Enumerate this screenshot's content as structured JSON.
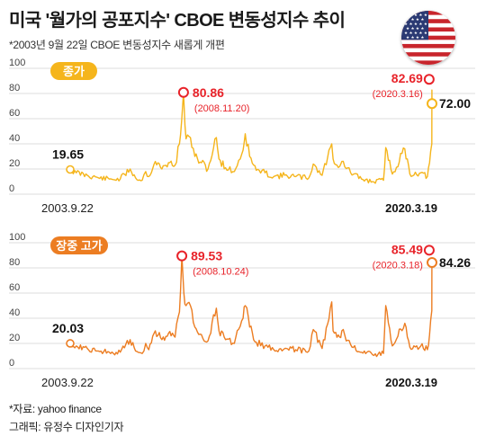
{
  "header": {
    "title": "미국 '월가의 공포지수' CBOE 변동성지수 추이",
    "subtitle": "*2003년 9월 22일 CBOE 변동성지수 새롭게 개편"
  },
  "flag_icon": "us-flag-icon",
  "colors": {
    "close_line": "#f5b51c",
    "high_line": "#ec7d22",
    "marker_red": "#e8232a",
    "label_red": "#e8232a",
    "grid": "#dcdcdc"
  },
  "footer": {
    "source": "*자료: yahoo finance",
    "credit": "그래픽: 유정수 디자인기자"
  },
  "chart_data": [
    {
      "type": "line",
      "badge": "종가",
      "yticks": [
        "100",
        "80",
        "60",
        "40",
        "20",
        "0"
      ],
      "ylim": [
        0,
        100
      ],
      "x_start_label": "2003.9.22",
      "x_end_label": "2020.3.19",
      "x": [
        2003.72,
        2004.0,
        2004.5,
        2005.0,
        2005.5,
        2006.0,
        2006.45,
        2006.7,
        2007.0,
        2007.16,
        2007.3,
        2007.6,
        2007.9,
        2008.2,
        2008.5,
        2008.7,
        2008.8,
        2008.885,
        2008.95,
        2009.0,
        2009.2,
        2009.4,
        2009.7,
        2010.0,
        2010.38,
        2010.5,
        2010.8,
        2011.2,
        2011.6,
        2011.7,
        2011.9,
        2012.2,
        2012.6,
        2013.0,
        2013.5,
        2014.0,
        2014.6,
        2014.8,
        2015.2,
        2015.64,
        2015.7,
        2016.0,
        2016.1,
        2016.5,
        2017.0,
        2017.5,
        2018.0,
        2018.1,
        2018.4,
        2018.97,
        2019.2,
        2019.7,
        2020.0,
        2020.1,
        2020.2,
        2020.204,
        2020.21
      ],
      "series": [
        {
          "values": [
            19.65,
            17,
            15,
            13,
            12,
            12,
            20,
            13,
            11,
            18,
            14,
            26,
            20,
            25,
            23,
            40,
            58,
            80.86,
            55,
            44,
            45,
            30,
            25,
            20,
            45,
            28,
            21,
            18,
            35,
            48,
            30,
            19,
            17,
            14,
            15,
            14,
            13,
            24,
            15,
            40,
            28,
            22,
            26,
            17,
            12,
            10,
            11,
            37,
            16,
            36,
            16,
            17,
            14,
            25,
            40,
            82.69,
            72.0
          ]
        }
      ],
      "annotations": [
        {
          "value": "19.65"
        },
        {
          "value": "80.86",
          "date": "(2008.11.20)"
        },
        {
          "value": "82.69",
          "date": "(2020.3.16)"
        },
        {
          "value": "72.00"
        }
      ]
    },
    {
      "type": "line",
      "badge": "장중 고가",
      "yticks": [
        "100",
        "80",
        "60",
        "40",
        "20",
        "0"
      ],
      "ylim": [
        0,
        100
      ],
      "x_start_label": "2003.9.22",
      "x_end_label": "2020.3.19",
      "x": [
        2003.72,
        2004.0,
        2004.5,
        2005.0,
        2005.5,
        2006.0,
        2006.45,
        2006.7,
        2007.0,
        2007.16,
        2007.3,
        2007.6,
        2007.9,
        2008.2,
        2008.5,
        2008.7,
        2008.75,
        2008.81,
        2008.9,
        2009.0,
        2009.2,
        2009.4,
        2009.7,
        2010.0,
        2010.38,
        2010.5,
        2010.8,
        2011.2,
        2011.6,
        2011.7,
        2011.9,
        2012.2,
        2012.6,
        2013.0,
        2013.5,
        2014.0,
        2014.6,
        2014.8,
        2015.2,
        2015.64,
        2015.7,
        2016.0,
        2016.1,
        2016.5,
        2017.0,
        2017.5,
        2018.0,
        2018.1,
        2018.4,
        2018.97,
        2019.2,
        2019.7,
        2020.0,
        2020.1,
        2020.2,
        2020.207,
        2020.21
      ],
      "series": [
        {
          "values": [
            20.03,
            18,
            16,
            14,
            13,
            13,
            23,
            14,
            12,
            20,
            15,
            30,
            23,
            28,
            25,
            45,
            62,
            89.53,
            60,
            50,
            50,
            33,
            27,
            22,
            48,
            30,
            23,
            20,
            40,
            50,
            33,
            21,
            18,
            15,
            16,
            15,
            14,
            31,
            16,
            53,
            30,
            25,
            30,
            19,
            13,
            11,
            12,
            50,
            18,
            36,
            17,
            18,
            15,
            27,
            46,
            85.49,
            84.26
          ]
        }
      ],
      "annotations": [
        {
          "value": "20.03"
        },
        {
          "value": "89.53",
          "date": "(2008.10.24)"
        },
        {
          "value": "85.49",
          "date": "(2020.3.18)"
        },
        {
          "value": "84.26"
        }
      ]
    }
  ]
}
